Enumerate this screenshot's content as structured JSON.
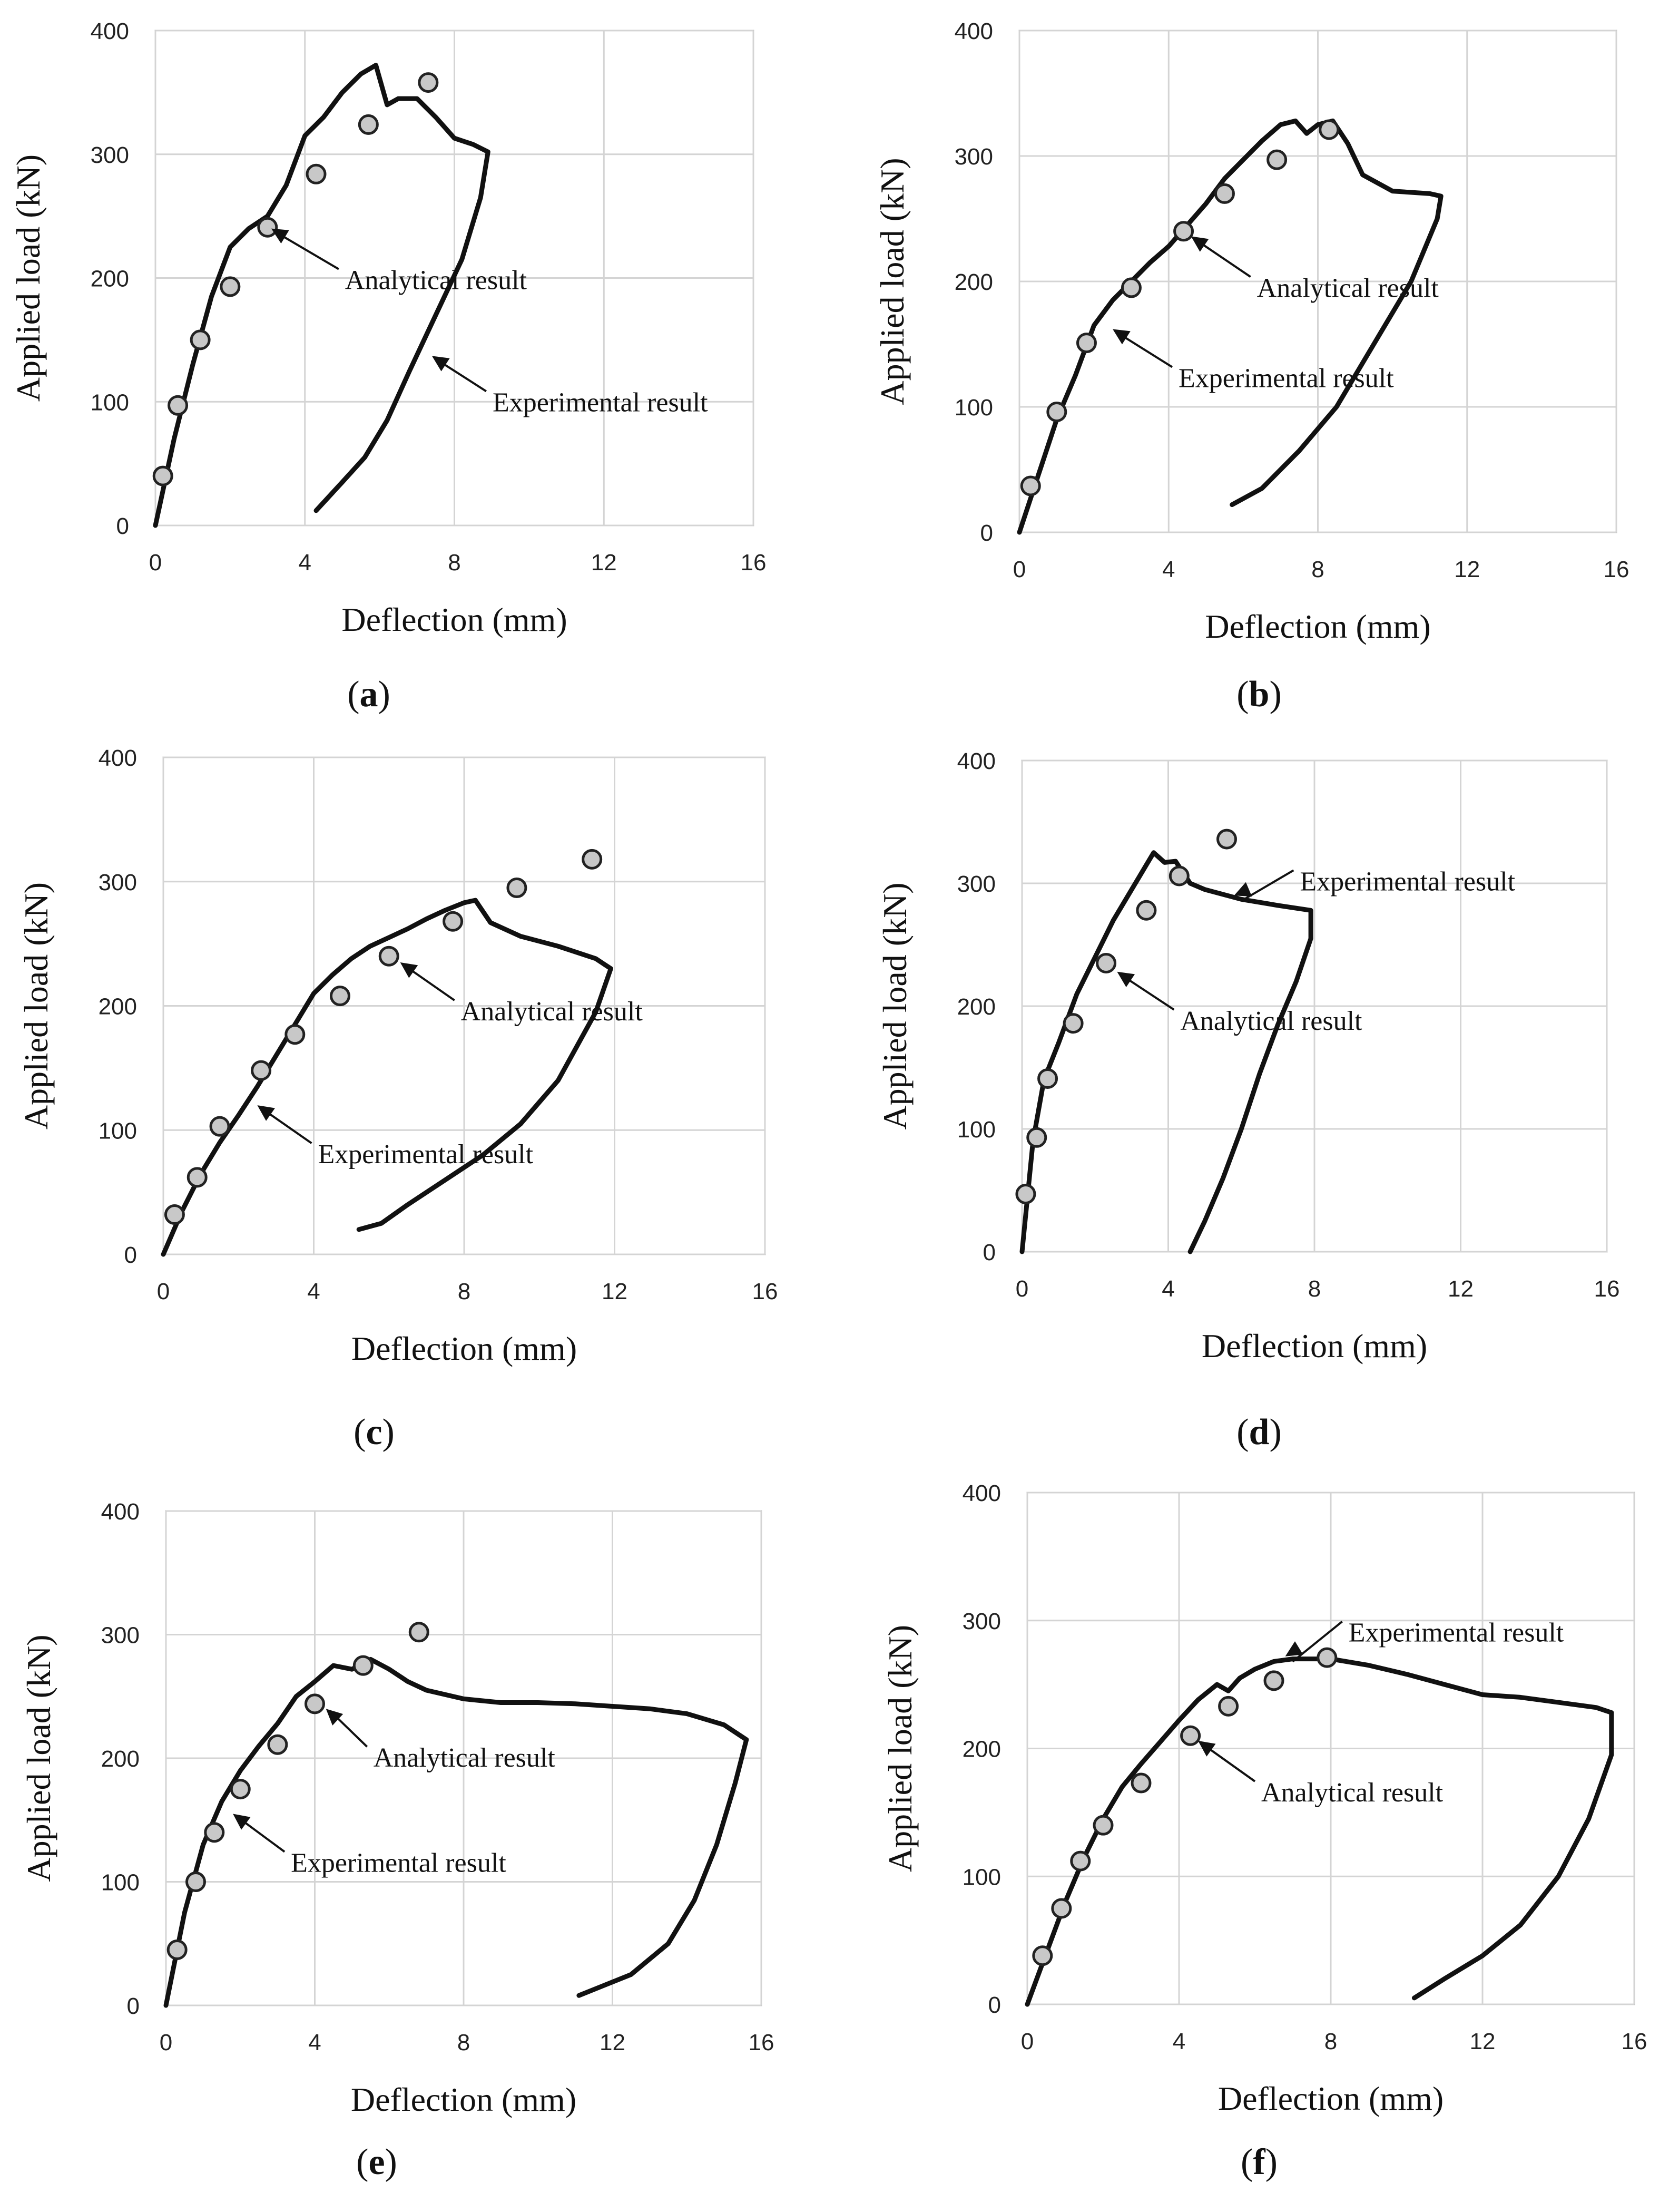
{
  "chart_data": [
    {
      "panel": "a",
      "type": "line",
      "xlabel": "Deflection (mm)",
      "ylabel": "Applied load (kN)",
      "xlim": [
        0,
        16
      ],
      "ylim": [
        0,
        400
      ],
      "xticks": [
        "0",
        "4",
        "8",
        "12",
        "16"
      ],
      "yticks": [
        "0",
        "100",
        "200",
        "300",
        "400"
      ],
      "grid": true,
      "experimental": [
        [
          0,
          0
        ],
        [
          0.5,
          70
        ],
        [
          1,
          130
        ],
        [
          1.5,
          185
        ],
        [
          2,
          225
        ],
        [
          2.5,
          240
        ],
        [
          3,
          250
        ],
        [
          3.5,
          275
        ],
        [
          4,
          315
        ],
        [
          4.5,
          330
        ],
        [
          5,
          350
        ],
        [
          5.5,
          365
        ],
        [
          5.9,
          372
        ],
        [
          6.2,
          340
        ],
        [
          6.5,
          345
        ],
        [
          7,
          345
        ],
        [
          7.5,
          330
        ],
        [
          8,
          313
        ],
        [
          8.5,
          308
        ],
        [
          8.9,
          302
        ],
        [
          8.7,
          265
        ],
        [
          8.2,
          215
        ],
        [
          7.5,
          170
        ],
        [
          6.8,
          125
        ],
        [
          6.2,
          85
        ],
        [
          5.6,
          55
        ],
        [
          5,
          35
        ],
        [
          4.3,
          12
        ]
      ],
      "analytical": [
        [
          0.2,
          40
        ],
        [
          0.6,
          97
        ],
        [
          1.2,
          150
        ],
        [
          2,
          193
        ],
        [
          3,
          241
        ],
        [
          4.3,
          284
        ],
        [
          5.7,
          324
        ],
        [
          7.3,
          358
        ]
      ],
      "annotations": [
        {
          "text": "Analytical result",
          "points_to": [
            3.1,
            240
          ]
        },
        {
          "text": "Experimental result",
          "points_to": [
            7.4,
            137
          ]
        }
      ],
      "label": "a"
    },
    {
      "panel": "b",
      "type": "line",
      "xlabel": "Deflection (mm)",
      "ylabel": "Applied load (kN)",
      "xlim": [
        0,
        16
      ],
      "ylim": [
        0,
        400
      ],
      "xticks": [
        "0",
        "4",
        "8",
        "12",
        "16"
      ],
      "yticks": [
        "0",
        "100",
        "200",
        "300",
        "400"
      ],
      "grid": true,
      "experimental": [
        [
          0,
          0
        ],
        [
          0.5,
          45
        ],
        [
          1,
          90
        ],
        [
          1.5,
          125
        ],
        [
          2,
          165
        ],
        [
          2.5,
          185
        ],
        [
          3,
          200
        ],
        [
          3.5,
          215
        ],
        [
          4,
          228
        ],
        [
          4.5,
          245
        ],
        [
          5,
          262
        ],
        [
          5.5,
          282
        ],
        [
          6,
          297
        ],
        [
          6.5,
          312
        ],
        [
          7,
          325
        ],
        [
          7.4,
          328
        ],
        [
          7.7,
          318
        ],
        [
          8,
          325
        ],
        [
          8.4,
          328
        ],
        [
          8.8,
          310
        ],
        [
          9.2,
          285
        ],
        [
          10,
          272
        ],
        [
          11,
          270
        ],
        [
          11.3,
          268
        ],
        [
          11.2,
          250
        ],
        [
          10.5,
          200
        ],
        [
          9.5,
          150
        ],
        [
          8.5,
          100
        ],
        [
          7.5,
          65
        ],
        [
          6.5,
          35
        ],
        [
          5.7,
          22
        ]
      ],
      "analytical": [
        [
          0.3,
          37
        ],
        [
          1,
          96
        ],
        [
          1.8,
          151
        ],
        [
          3,
          195
        ],
        [
          4.4,
          240
        ],
        [
          5.5,
          270
        ],
        [
          6.9,
          297
        ],
        [
          8.3,
          321
        ]
      ],
      "annotations": [
        {
          "text": "Analytical result",
          "points_to": [
            4.6,
            236
          ]
        },
        {
          "text": "Experimental result",
          "points_to": [
            2.5,
            162
          ]
        }
      ],
      "label": "b"
    },
    {
      "panel": "c",
      "type": "line",
      "xlabel": "Deflection (mm)",
      "ylabel": "Applied load (kN)",
      "xlim": [
        0,
        16
      ],
      "ylim": [
        0,
        400
      ],
      "xticks": [
        "0",
        "4",
        "8",
        "12",
        "16"
      ],
      "yticks": [
        "0",
        "100",
        "200",
        "300",
        "400"
      ],
      "grid": true,
      "experimental": [
        [
          0,
          0
        ],
        [
          0.5,
          35
        ],
        [
          1,
          65
        ],
        [
          1.5,
          90
        ],
        [
          2,
          112
        ],
        [
          2.5,
          135
        ],
        [
          3,
          160
        ],
        [
          3.5,
          185
        ],
        [
          4,
          210
        ],
        [
          4.5,
          225
        ],
        [
          5,
          238
        ],
        [
          5.5,
          248
        ],
        [
          6,
          255
        ],
        [
          6.5,
          262
        ],
        [
          7,
          270
        ],
        [
          7.5,
          277
        ],
        [
          8,
          283
        ],
        [
          8.3,
          285
        ],
        [
          8.7,
          267
        ],
        [
          9.5,
          256
        ],
        [
          10.5,
          248
        ],
        [
          11.5,
          238
        ],
        [
          11.9,
          230
        ],
        [
          11.5,
          195
        ],
        [
          10.5,
          140
        ],
        [
          9.5,
          105
        ],
        [
          8.5,
          80
        ],
        [
          7.5,
          60
        ],
        [
          6.5,
          40
        ],
        [
          5.8,
          25
        ],
        [
          5.2,
          20
        ]
      ],
      "analytical": [
        [
          0.3,
          32
        ],
        [
          0.9,
          62
        ],
        [
          1.5,
          103
        ],
        [
          2.6,
          148
        ],
        [
          3.5,
          177
        ],
        [
          4.7,
          208
        ],
        [
          6,
          240
        ],
        [
          7.7,
          268
        ],
        [
          9.4,
          295
        ],
        [
          11.4,
          318
        ]
      ],
      "annotations": [
        {
          "text": "Analytical result",
          "points_to": [
            6.3,
            235
          ]
        },
        {
          "text": "Experimental result",
          "points_to": [
            2.5,
            120
          ]
        }
      ],
      "label": "c"
    },
    {
      "panel": "d",
      "type": "line",
      "xlabel": "Deflection (mm)",
      "ylabel": "Applied load (kN)",
      "xlim": [
        0,
        16
      ],
      "ylim": [
        0,
        400
      ],
      "xticks": [
        "0",
        "4",
        "8",
        "12",
        "16"
      ],
      "yticks": [
        "0",
        "100",
        "200",
        "300",
        "400"
      ],
      "grid": true,
      "experimental": [
        [
          0,
          0
        ],
        [
          0.3,
          90
        ],
        [
          0.6,
          140
        ],
        [
          1,
          170
        ],
        [
          1.5,
          210
        ],
        [
          2,
          240
        ],
        [
          2.5,
          270
        ],
        [
          3,
          295
        ],
        [
          3.4,
          315
        ],
        [
          3.6,
          325
        ],
        [
          3.9,
          317
        ],
        [
          4.2,
          318
        ],
        [
          4.6,
          300
        ],
        [
          5,
          295
        ],
        [
          6,
          287
        ],
        [
          7,
          282
        ],
        [
          7.9,
          278
        ],
        [
          7.9,
          255
        ],
        [
          7.5,
          220
        ],
        [
          7,
          185
        ],
        [
          6.5,
          145
        ],
        [
          6,
          100
        ],
        [
          5.5,
          60
        ],
        [
          5,
          25
        ],
        [
          4.6,
          0
        ]
      ],
      "analytical": [
        [
          0.1,
          47
        ],
        [
          0.4,
          93
        ],
        [
          0.7,
          141
        ],
        [
          1.4,
          186
        ],
        [
          2.3,
          235
        ],
        [
          3.4,
          278
        ],
        [
          4.3,
          306
        ],
        [
          5.6,
          336
        ]
      ],
      "annotations": [
        {
          "text": "Experimental result",
          "points_to": [
            5.8,
            290
          ]
        },
        {
          "text": "Analytical result",
          "points_to": [
            2.6,
            228
          ]
        }
      ],
      "label": "d"
    },
    {
      "panel": "e",
      "type": "line",
      "xlabel": "Deflection (mm)",
      "ylabel": "Applied load (kN)",
      "xlim": [
        0,
        16
      ],
      "ylim": [
        0,
        400
      ],
      "xticks": [
        "0",
        "4",
        "8",
        "12",
        "16"
      ],
      "yticks": [
        "0",
        "100",
        "200",
        "300",
        "400"
      ],
      "grid": true,
      "experimental": [
        [
          0,
          0
        ],
        [
          0.5,
          75
        ],
        [
          1,
          130
        ],
        [
          1.5,
          165
        ],
        [
          2,
          190
        ],
        [
          2.5,
          210
        ],
        [
          3,
          228
        ],
        [
          3.5,
          250
        ],
        [
          4,
          262
        ],
        [
          4.5,
          275
        ],
        [
          5,
          272
        ],
        [
          5.5,
          280
        ],
        [
          6,
          272
        ],
        [
          6.5,
          262
        ],
        [
          7,
          255
        ],
        [
          8,
          248
        ],
        [
          9,
          245
        ],
        [
          10,
          245
        ],
        [
          11,
          244
        ],
        [
          12,
          242
        ],
        [
          13,
          240
        ],
        [
          14,
          236
        ],
        [
          15,
          227
        ],
        [
          15.6,
          215
        ],
        [
          15.3,
          180
        ],
        [
          14.8,
          130
        ],
        [
          14.2,
          85
        ],
        [
          13.5,
          50
        ],
        [
          12.5,
          25
        ],
        [
          11.1,
          8
        ]
      ],
      "analytical": [
        [
          0.3,
          45
        ],
        [
          0.8,
          100
        ],
        [
          1.3,
          140
        ],
        [
          2,
          175
        ],
        [
          3,
          211
        ],
        [
          4,
          244
        ],
        [
          5.3,
          275
        ],
        [
          6.8,
          302
        ]
      ],
      "annotations": [
        {
          "text": "Analytical result",
          "points_to": [
            4.3,
            240
          ]
        },
        {
          "text": "Experimental result",
          "points_to": [
            1.8,
            155
          ]
        }
      ],
      "label": "e"
    },
    {
      "panel": "f",
      "type": "line",
      "xlabel": "Deflection (mm)",
      "ylabel": "Applied load (kN)",
      "xlim": [
        0,
        16
      ],
      "ylim": [
        0,
        400
      ],
      "xticks": [
        "0",
        "4",
        "8",
        "12",
        "16"
      ],
      "yticks": [
        "0",
        "100",
        "200",
        "300",
        "400"
      ],
      "grid": true,
      "experimental": [
        [
          0,
          0
        ],
        [
          0.5,
          40
        ],
        [
          1,
          80
        ],
        [
          1.5,
          115
        ],
        [
          2,
          145
        ],
        [
          2.5,
          170
        ],
        [
          3,
          188
        ],
        [
          3.5,
          205
        ],
        [
          4,
          222
        ],
        [
          4.5,
          238
        ],
        [
          5,
          250
        ],
        [
          5.3,
          245
        ],
        [
          5.6,
          255
        ],
        [
          6,
          262
        ],
        [
          6.5,
          268
        ],
        [
          7,
          270
        ],
        [
          8,
          270
        ],
        [
          9,
          265
        ],
        [
          10,
          258
        ],
        [
          11,
          250
        ],
        [
          12,
          242
        ],
        [
          13,
          240
        ],
        [
          14,
          236
        ],
        [
          15,
          232
        ],
        [
          15.4,
          228
        ],
        [
          15.4,
          195
        ],
        [
          14.8,
          145
        ],
        [
          14,
          100
        ],
        [
          13,
          62
        ],
        [
          12,
          38
        ],
        [
          11,
          20
        ],
        [
          10.2,
          5
        ]
      ],
      "analytical": [
        [
          0.4,
          38
        ],
        [
          0.9,
          75
        ],
        [
          1.4,
          112
        ],
        [
          2,
          140
        ],
        [
          3,
          173
        ],
        [
          4.3,
          210
        ],
        [
          5.3,
          233
        ],
        [
          6.5,
          253
        ],
        [
          7.9,
          271
        ]
      ],
      "annotations": [
        {
          "text": "Experimental result",
          "points_to": [
            6.8,
            272
          ]
        },
        {
          "text": "Analytical result",
          "points_to": [
            4.5,
            206
          ]
        }
      ],
      "label": "f"
    }
  ]
}
